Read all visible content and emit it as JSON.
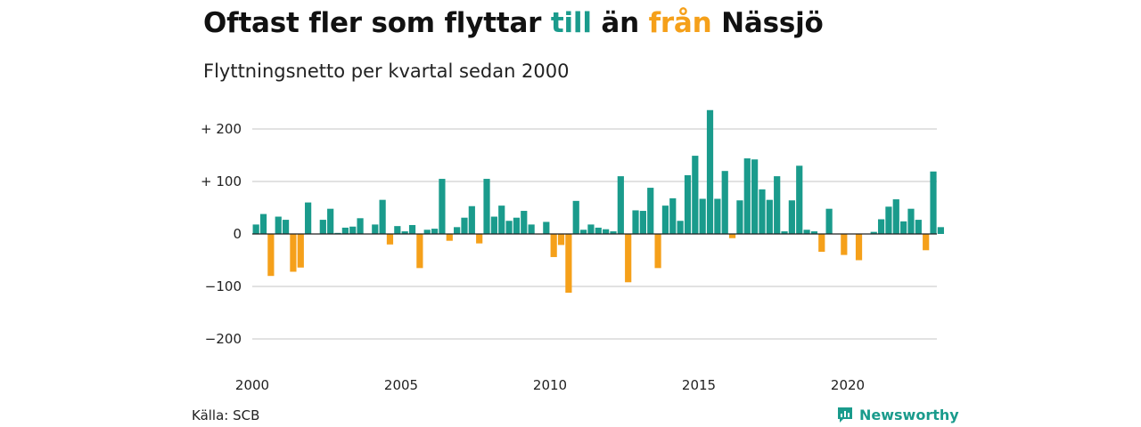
{
  "title": {
    "part1": "Oftast fler som flyttar ",
    "part2": "till",
    "part3": " än ",
    "part4": "från",
    "part5": " Nässjö"
  },
  "subtitle": "Flyttningsnetto per kvartal sedan 2000",
  "source": "Källa: SCB",
  "brand": "Newsworthy",
  "colors": {
    "positive": "#1a9b8c",
    "negative": "#f5a01a",
    "grid": "#d9d9d9",
    "zero": "#222222"
  },
  "chart_data": {
    "type": "bar",
    "x_start": "2000-Q1",
    "x_ticks": [
      "2000",
      "2005",
      "2010",
      "2015",
      "2020"
    ],
    "y_ticks": [
      "+ 200",
      "+ 100",
      "0",
      "−100",
      "−200"
    ],
    "y_tick_values": [
      200,
      100,
      0,
      -100,
      -200
    ],
    "ylim": [
      -240,
      240
    ],
    "grid": true,
    "values": [
      18,
      38,
      -80,
      33,
      27,
      -72,
      -64,
      60,
      0,
      27,
      48,
      2,
      12,
      14,
      30,
      0,
      18,
      65,
      -20,
      15,
      5,
      17,
      -65,
      8,
      10,
      105,
      -13,
      13,
      31,
      53,
      -18,
      105,
      33,
      54,
      25,
      31,
      44,
      18,
      -1,
      23,
      -44,
      -21,
      -112,
      63,
      8,
      18,
      12,
      9,
      5,
      110,
      -92,
      45,
      44,
      88,
      -65,
      54,
      68,
      25,
      112,
      149,
      67,
      236,
      67,
      120,
      -8,
      64,
      144,
      142,
      85,
      65,
      110,
      5,
      64,
      130,
      8,
      5,
      -34,
      48,
      0,
      -40,
      0,
      -50,
      0,
      4,
      28,
      52,
      66,
      24,
      48,
      27,
      -31,
      119,
      13
    ]
  }
}
